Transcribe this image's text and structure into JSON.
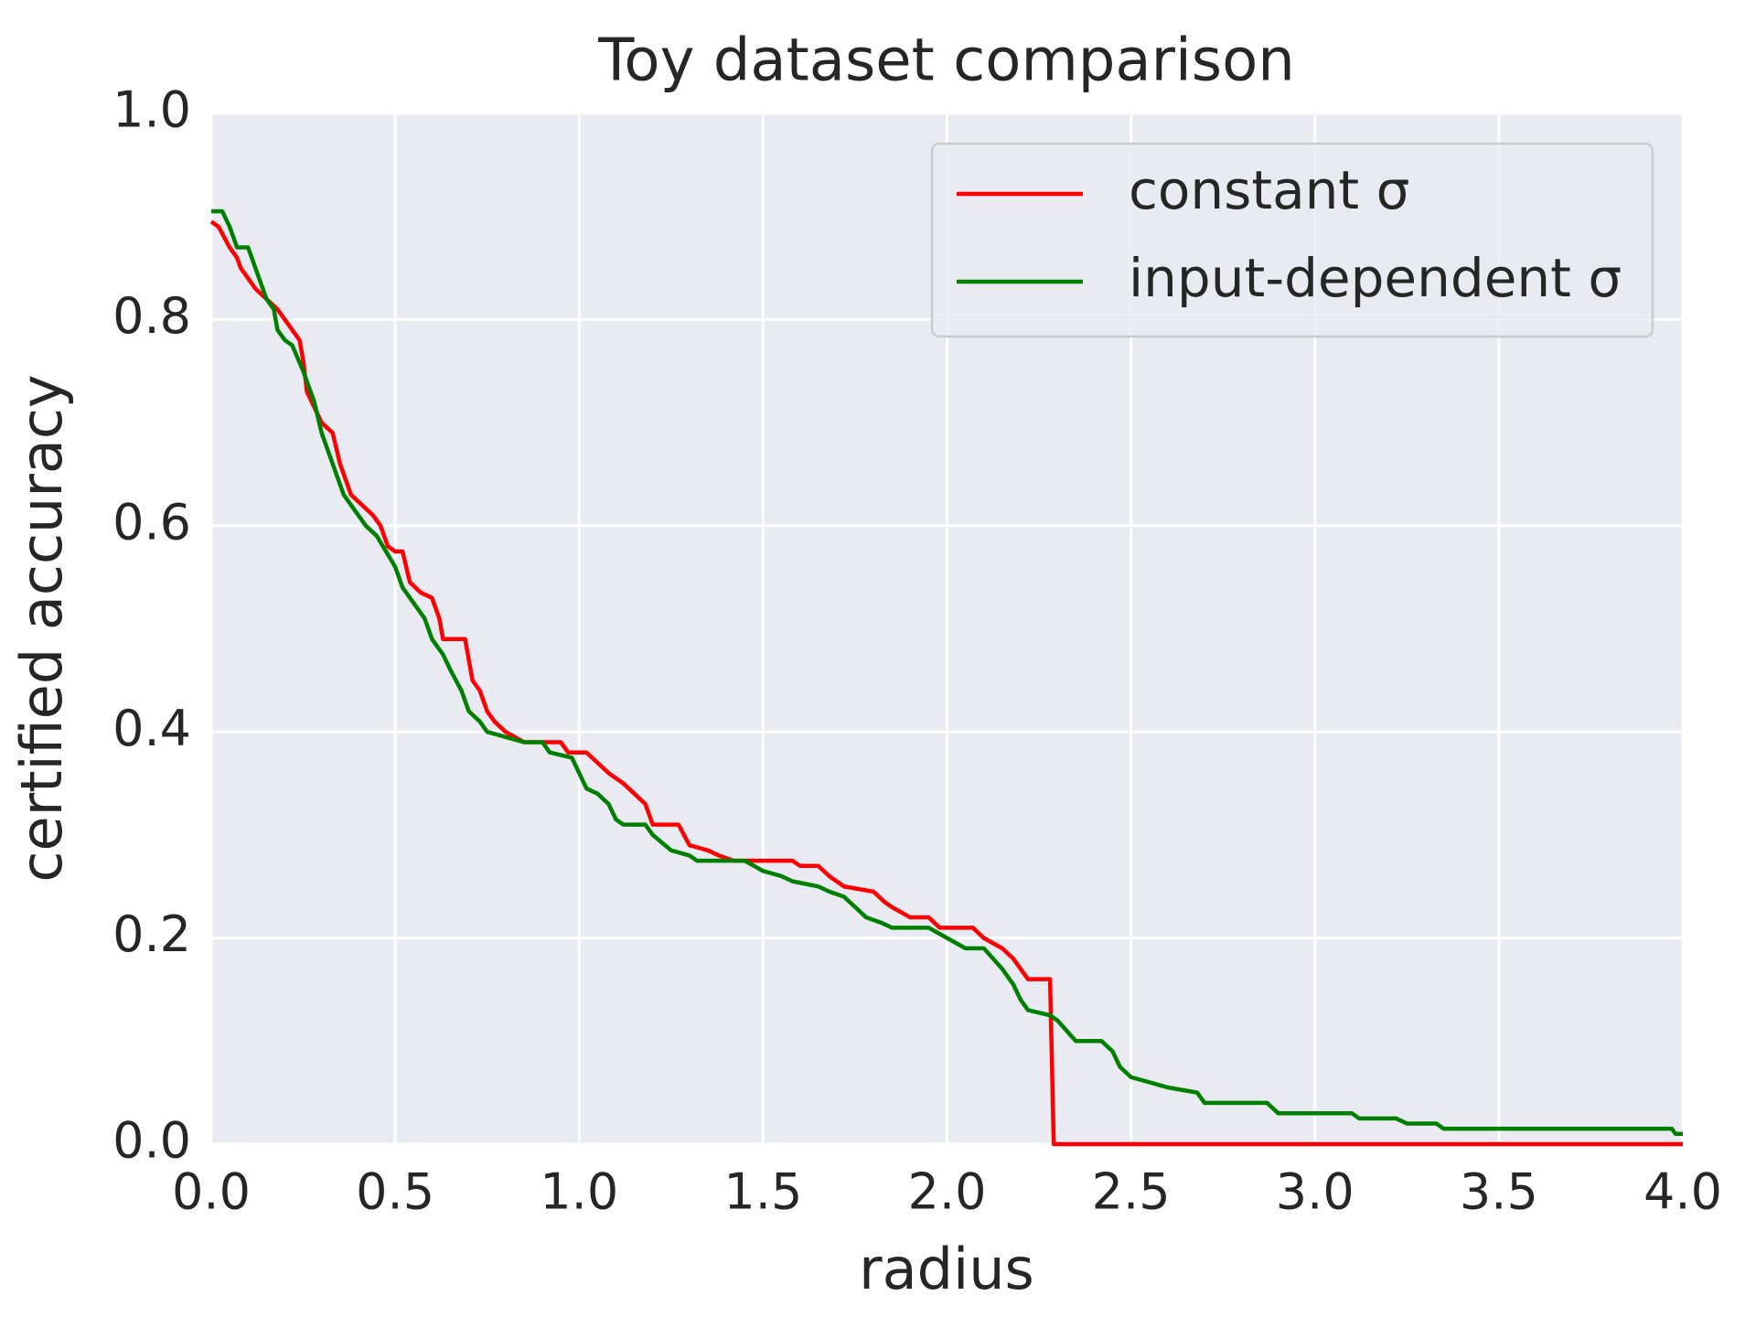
{
  "chart_data": {
    "type": "line",
    "title": "Toy dataset comparison",
    "x_label": "radius",
    "y_label": "certified accuracy",
    "xlim": [
      0,
      4
    ],
    "ylim": [
      0,
      1
    ],
    "xticks": [
      {
        "value": 0,
        "label": "0.0"
      },
      0.5,
      {
        "value": 1,
        "label": "1.0"
      },
      1.5,
      {
        "value": 2,
        "label": "2.0"
      },
      2.5,
      {
        "value": 3,
        "label": "3.0"
      },
      3.5,
      {
        "value": 4,
        "label": "4.0"
      }
    ],
    "yticks": [
      {
        "value": 0,
        "label": "0.0"
      },
      0.2,
      0.4,
      0.6,
      0.8,
      {
        "value": 1,
        "label": "1.0"
      }
    ],
    "grid": true,
    "legend": "upper right",
    "series": [
      {
        "name": "constant σ",
        "color": "#ff0000",
        "x": [
          0,
          0.02,
          0.05,
          0.07,
          0.08,
          0.12,
          0.15,
          0.18,
          0.2,
          0.22,
          0.24,
          0.25,
          0.26,
          0.3,
          0.33,
          0.35,
          0.38,
          0.41,
          0.44,
          0.46,
          0.48,
          0.5,
          0.52,
          0.54,
          0.57,
          0.6,
          0.62,
          0.63,
          0.69,
          0.71,
          0.73,
          0.75,
          0.77,
          0.8,
          0.85,
          0.95,
          0.97,
          1.02,
          1.05,
          1.08,
          1.12,
          1.15,
          1.18,
          1.2,
          1.27,
          1.3,
          1.35,
          1.38,
          1.42,
          1.58,
          1.6,
          1.65,
          1.68,
          1.72,
          1.8,
          1.83,
          1.85,
          1.9,
          1.95,
          1.98,
          2.07,
          2.1,
          2.15,
          2.18,
          2.22,
          2.28,
          2.29,
          4.0
        ],
        "values": [
          0.895,
          0.89,
          0.87,
          0.86,
          0.85,
          0.83,
          0.82,
          0.81,
          0.8,
          0.79,
          0.78,
          0.76,
          0.73,
          0.7,
          0.69,
          0.66,
          0.63,
          0.62,
          0.61,
          0.6,
          0.58,
          0.575,
          0.575,
          0.545,
          0.535,
          0.53,
          0.51,
          0.49,
          0.49,
          0.45,
          0.44,
          0.42,
          0.41,
          0.4,
          0.39,
          0.39,
          0.38,
          0.38,
          0.37,
          0.36,
          0.35,
          0.34,
          0.33,
          0.31,
          0.31,
          0.29,
          0.285,
          0.28,
          0.275,
          0.275,
          0.27,
          0.27,
          0.26,
          0.25,
          0.245,
          0.235,
          0.23,
          0.22,
          0.22,
          0.21,
          0.21,
          0.2,
          0.19,
          0.18,
          0.16,
          0.16,
          0.0,
          0.0
        ]
      },
      {
        "name": "input-dependent σ",
        "color": "#008000",
        "x": [
          0,
          0.03,
          0.05,
          0.07,
          0.1,
          0.12,
          0.15,
          0.17,
          0.18,
          0.2,
          0.22,
          0.25,
          0.28,
          0.3,
          0.32,
          0.34,
          0.36,
          0.38,
          0.42,
          0.45,
          0.5,
          0.52,
          0.55,
          0.58,
          0.6,
          0.63,
          0.65,
          0.68,
          0.7,
          0.73,
          0.75,
          0.8,
          0.85,
          0.9,
          0.92,
          0.98,
          1.0,
          1.02,
          1.05,
          1.08,
          1.1,
          1.12,
          1.18,
          1.2,
          1.25,
          1.3,
          1.32,
          1.45,
          1.5,
          1.55,
          1.58,
          1.65,
          1.68,
          1.72,
          1.75,
          1.78,
          1.82,
          1.85,
          1.95,
          2.0,
          2.05,
          2.1,
          2.15,
          2.18,
          2.2,
          2.22,
          2.28,
          2.3,
          2.35,
          2.42,
          2.45,
          2.47,
          2.5,
          2.55,
          2.6,
          2.68,
          2.7,
          2.87,
          2.9,
          3.1,
          3.12,
          3.22,
          3.25,
          3.33,
          3.35,
          3.97,
          3.98,
          4.0
        ],
        "values": [
          0.905,
          0.905,
          0.89,
          0.87,
          0.87,
          0.85,
          0.82,
          0.81,
          0.79,
          0.78,
          0.775,
          0.75,
          0.72,
          0.69,
          0.67,
          0.65,
          0.63,
          0.62,
          0.6,
          0.59,
          0.56,
          0.54,
          0.525,
          0.51,
          0.49,
          0.475,
          0.46,
          0.44,
          0.42,
          0.41,
          0.4,
          0.395,
          0.39,
          0.39,
          0.38,
          0.375,
          0.36,
          0.345,
          0.34,
          0.33,
          0.315,
          0.31,
          0.31,
          0.3,
          0.285,
          0.28,
          0.275,
          0.275,
          0.265,
          0.26,
          0.255,
          0.25,
          0.245,
          0.24,
          0.23,
          0.22,
          0.215,
          0.21,
          0.21,
          0.2,
          0.19,
          0.19,
          0.17,
          0.155,
          0.14,
          0.13,
          0.125,
          0.12,
          0.1,
          0.1,
          0.09,
          0.075,
          0.065,
          0.06,
          0.055,
          0.05,
          0.04,
          0.04,
          0.03,
          0.03,
          0.025,
          0.025,
          0.02,
          0.02,
          0.015,
          0.015,
          0.01,
          0.01
        ]
      }
    ]
  }
}
